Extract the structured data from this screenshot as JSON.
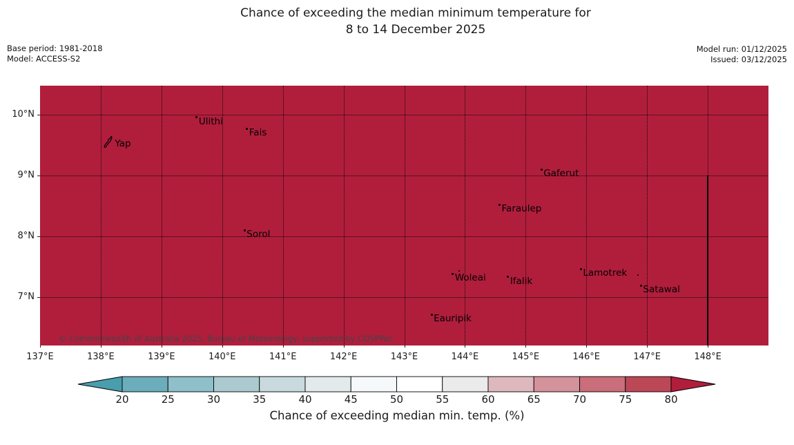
{
  "title": {
    "line1": "Chance of exceeding the median minimum temperature for",
    "line2": "8 to 14 December 2025"
  },
  "meta": {
    "base_period": "Base period: 1981-2018",
    "model": "Model: ACCESS-S2",
    "model_run": "Model run: 01/12/2025",
    "issued": "Issued: 03/12/2025"
  },
  "map": {
    "fill_color": "#b01e3c",
    "fill_value": "> 80%",
    "copyright": "© Commonwealth of Australia 2025, Bureau of Meteorology, supported by COSPPac",
    "bounds": {
      "lon_min": 137,
      "lon_max": 149,
      "lat_min": 6.2,
      "lat_max": 10.48
    },
    "gridline_lons": [
      138,
      139,
      140,
      141,
      142,
      143,
      144,
      145,
      146,
      147,
      148
    ],
    "gridline_lats": [
      7,
      8,
      9,
      10
    ],
    "x_tick_labels": [
      {
        "lon": 137,
        "label": "137°E"
      },
      {
        "lon": 138,
        "label": "138°E"
      },
      {
        "lon": 139,
        "label": "139°E"
      },
      {
        "lon": 140,
        "label": "140°E"
      },
      {
        "lon": 141,
        "label": "141°E"
      },
      {
        "lon": 142,
        "label": "142°E"
      },
      {
        "lon": 143,
        "label": "143°E"
      },
      {
        "lon": 144,
        "label": "144°E"
      },
      {
        "lon": 145,
        "label": "145°E"
      },
      {
        "lon": 146,
        "label": "146°E"
      },
      {
        "lon": 147,
        "label": "147°E"
      },
      {
        "lon": 148,
        "label": "148°E"
      }
    ],
    "y_tick_labels": [
      {
        "lat": 10,
        "label": "10°N"
      },
      {
        "lat": 9,
        "label": "9°N"
      },
      {
        "lat": 8,
        "label": "8°N"
      },
      {
        "lat": 7,
        "label": "7°N"
      }
    ],
    "boundary_line": {
      "lon": 148,
      "lat_from": 9.0,
      "lat_to": 6.2,
      "color": "#000000"
    },
    "places": [
      {
        "name": "Yap",
        "lon": 138.13,
        "lat": 9.53,
        "island_outline": true
      },
      {
        "name": "Ulithi",
        "lon": 139.58,
        "lat": 9.96
      },
      {
        "name": "Fais",
        "lon": 140.41,
        "lat": 9.77
      },
      {
        "name": "Sorol",
        "lon": 140.37,
        "lat": 8.1
      },
      {
        "name": "Gaferut",
        "lon": 145.26,
        "lat": 9.1
      },
      {
        "name": "Faraulep",
        "lon": 144.57,
        "lat": 8.52
      },
      {
        "name": "Woleai",
        "lon": 143.8,
        "lat": 7.38
      },
      {
        "name": "Ifalik",
        "lon": 144.71,
        "lat": 7.33
      },
      {
        "name": "Lamotrek",
        "lon": 145.91,
        "lat": 7.46
      },
      {
        "name": "Satawal",
        "lon": 146.9,
        "lat": 7.19
      },
      {
        "name": "Eauripik",
        "lon": 143.45,
        "lat": 6.71
      }
    ],
    "extra_island_markers": [
      {
        "lon": 143.9,
        "lat": 7.43
      },
      {
        "lon": 146.85,
        "lat": 7.36
      }
    ]
  },
  "colorbar": {
    "label": "Chance of exceeding median min. temp. (%)",
    "tick_labels": [
      "20",
      "25",
      "30",
      "35",
      "40",
      "45",
      "50",
      "55",
      "60",
      "65",
      "70",
      "75",
      "80"
    ],
    "segment_colors": [
      "#6badba",
      "#8fbfc9",
      "#abcad0",
      "#c8dade",
      "#e2eaec",
      "#f6f9f9",
      "#ffffff",
      "#ebebeb",
      "#dfb8bd",
      "#d4929b",
      "#c96e7a",
      "#bc4757"
    ],
    "under_arrow_color": "#4a9dad",
    "over_arrow_color": "#b01e3c",
    "outline_color": "#000000"
  }
}
